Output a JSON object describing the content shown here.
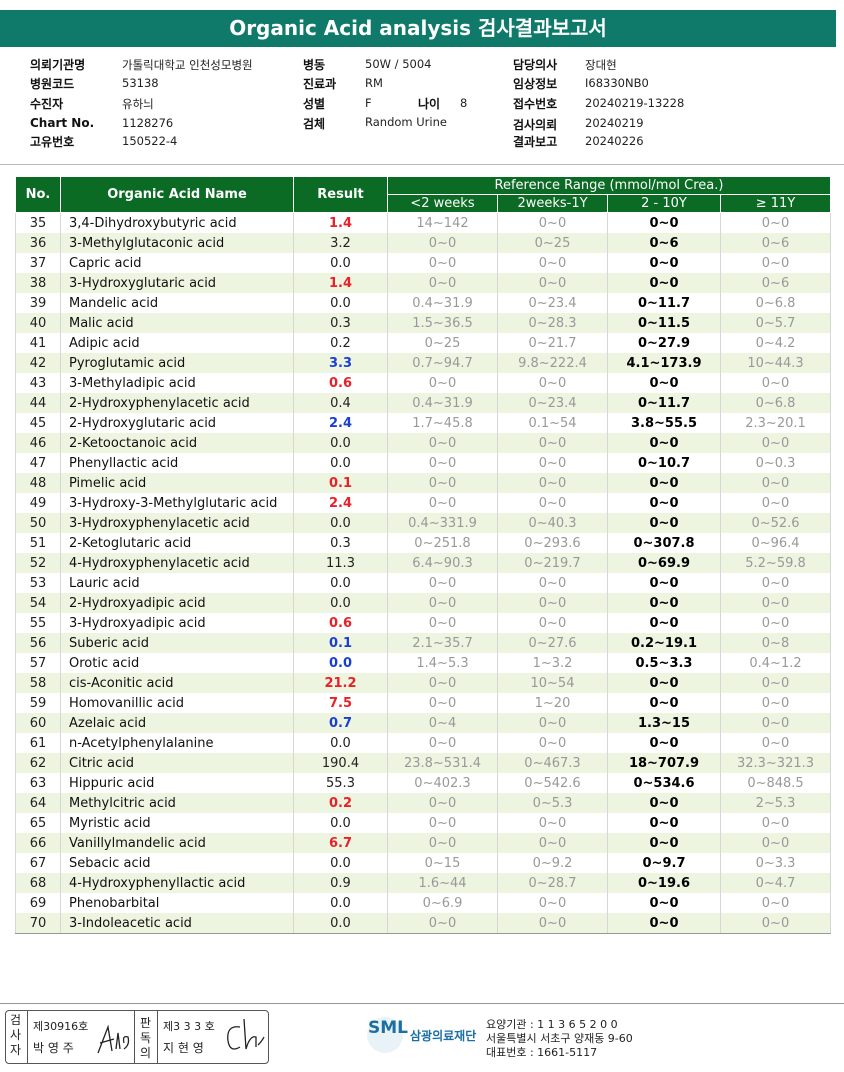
{
  "header": {
    "title": "Organic Acid analysis 검사결과보고서"
  },
  "info": {
    "hospital": {
      "label": "의뢰기관명",
      "value": "가톨릭대학교 인천성모병원"
    },
    "hospital_code": {
      "label": "병원코드",
      "value": "53138"
    },
    "patient": {
      "label": "수진자",
      "value": "유하늬"
    },
    "chart_no": {
      "label": "Chart No.",
      "value": "1128276"
    },
    "unique_no": {
      "label": "고유번호",
      "value": "150522-4"
    },
    "ward": {
      "label": "병동",
      "value": "50W / 5004"
    },
    "department": {
      "label": "진료과",
      "value": "RM"
    },
    "sex": {
      "label": "성별",
      "value": "F"
    },
    "age": {
      "label": "나이",
      "value": "8"
    },
    "specimen": {
      "label": "검체",
      "value": "Random Urine"
    },
    "doctor": {
      "label": "담당의사",
      "value": "장대현"
    },
    "clinical_info": {
      "label": "임상정보",
      "value": "I68330NB0"
    },
    "receipt_no": {
      "label": "접수번호",
      "value": "20240219-13228"
    },
    "request_date": {
      "label": "검사의뢰",
      "value": "20240219"
    },
    "report_date": {
      "label": "결과보고",
      "value": "20240226"
    }
  },
  "table": {
    "headers": {
      "no": "No.",
      "name": "Organic Acid Name",
      "result": "Result",
      "reference": "Reference Range (mmol/mol Crea.)",
      "ranges": [
        "<2 weeks",
        "2weeks-1Y",
        "2 - 10Y",
        "≥ 11Y"
      ]
    },
    "rows": [
      {
        "no": 35,
        "name": "3,4-Dihydroxybutyric acid",
        "result": "1.4",
        "color": "#e8202a",
        "ranges": [
          "14~142",
          "0~0",
          "0~0",
          "0~0"
        ]
      },
      {
        "no": 36,
        "name": "3-Methylglutaconic acid",
        "result": "3.2",
        "color": "#222222",
        "ranges": [
          "0~0",
          "0~25",
          "0~6",
          "0~6"
        ]
      },
      {
        "no": 37,
        "name": "Capric acid",
        "result": "0.0",
        "color": "#222222",
        "ranges": [
          "0~0",
          "0~0",
          "0~0",
          "0~0"
        ]
      },
      {
        "no": 38,
        "name": "3-Hydroxyglutaric acid",
        "result": "1.4",
        "color": "#e8202a",
        "ranges": [
          "0~0",
          "0~0",
          "0~0",
          "0~6"
        ]
      },
      {
        "no": 39,
        "name": "Mandelic acid",
        "result": "0.0",
        "color": "#222222",
        "ranges": [
          "0.4~31.9",
          "0~23.4",
          "0~11.7",
          "0~6.8"
        ]
      },
      {
        "no": 40,
        "name": "Malic acid",
        "result": "0.3",
        "color": "#222222",
        "ranges": [
          "1.5~36.5",
          "0~28.3",
          "0~11.5",
          "0~5.7"
        ]
      },
      {
        "no": 41,
        "name": "Adipic acid",
        "result": "0.2",
        "color": "#222222",
        "ranges": [
          "0~25",
          "0~21.7",
          "0~27.9",
          "0~4.2"
        ]
      },
      {
        "no": 42,
        "name": "Pyroglutamic acid",
        "result": "3.3",
        "color": "#1a3fd0",
        "ranges": [
          "0.7~94.7",
          "9.8~222.4",
          "4.1~173.9",
          "10~44.3"
        ]
      },
      {
        "no": 43,
        "name": "3-Methyladipic acid",
        "result": "0.6",
        "color": "#e8202a",
        "ranges": [
          "0~0",
          "0~0",
          "0~0",
          "0~0"
        ]
      },
      {
        "no": 44,
        "name": "2-Hydroxyphenylacetic acid",
        "result": "0.4",
        "color": "#222222",
        "ranges": [
          "0.4~31.9",
          "0~23.4",
          "0~11.7",
          "0~6.8"
        ]
      },
      {
        "no": 45,
        "name": "2-Hydroxyglutaric acid",
        "result": "2.4",
        "color": "#1a3fd0",
        "ranges": [
          "1.7~45.8",
          "0.1~54",
          "3.8~55.5",
          "2.3~20.1"
        ]
      },
      {
        "no": 46,
        "name": "2-Ketooctanoic acid",
        "result": "0.0",
        "color": "#222222",
        "ranges": [
          "0~0",
          "0~0",
          "0~0",
          "0~0"
        ]
      },
      {
        "no": 47,
        "name": "Phenyllactic acid",
        "result": "0.0",
        "color": "#222222",
        "ranges": [
          "0~0",
          "0~0",
          "0~10.7",
          "0~0.3"
        ]
      },
      {
        "no": 48,
        "name": "Pimelic acid",
        "result": "0.1",
        "color": "#e8202a",
        "ranges": [
          "0~0",
          "0~0",
          "0~0",
          "0~0"
        ]
      },
      {
        "no": 49,
        "name": "3-Hydroxy-3-Methylglutaric acid",
        "result": "2.4",
        "color": "#e8202a",
        "ranges": [
          "0~0",
          "0~0",
          "0~0",
          "0~0"
        ]
      },
      {
        "no": 50,
        "name": "3-Hydroxyphenylacetic acid",
        "result": "0.0",
        "color": "#222222",
        "ranges": [
          "0.4~331.9",
          "0~40.3",
          "0~0",
          "0~52.6"
        ]
      },
      {
        "no": 51,
        "name": "2-Ketoglutaric acid",
        "result": "0.3",
        "color": "#222222",
        "ranges": [
          "0~251.8",
          "0~293.6",
          "0~307.8",
          "0~96.4"
        ]
      },
      {
        "no": 52,
        "name": "4-Hydroxyphenylacetic acid",
        "result": "11.3",
        "color": "#222222",
        "ranges": [
          "6.4~90.3",
          "0~219.7",
          "0~69.9",
          "5.2~59.8"
        ]
      },
      {
        "no": 53,
        "name": "Lauric acid",
        "result": "0.0",
        "color": "#222222",
        "ranges": [
          "0~0",
          "0~0",
          "0~0",
          "0~0"
        ]
      },
      {
        "no": 54,
        "name": "2-Hydroxyadipic acid",
        "result": "0.0",
        "color": "#222222",
        "ranges": [
          "0~0",
          "0~0",
          "0~0",
          "0~0"
        ]
      },
      {
        "no": 55,
        "name": "3-Hydroxyadipic acid",
        "result": "0.6",
        "color": "#e8202a",
        "ranges": [
          "0~0",
          "0~0",
          "0~0",
          "0~0"
        ]
      },
      {
        "no": 56,
        "name": "Suberic acid",
        "result": "0.1",
        "color": "#1a3fd0",
        "ranges": [
          "2.1~35.7",
          "0~27.6",
          "0.2~19.1",
          "0~8"
        ]
      },
      {
        "no": 57,
        "name": "Orotic acid",
        "result": "0.0",
        "color": "#1a3fd0",
        "ranges": [
          "1.4~5.3",
          "1~3.2",
          "0.5~3.3",
          "0.4~1.2"
        ]
      },
      {
        "no": 58,
        "name": "cis-Aconitic acid",
        "result": "21.2",
        "color": "#e8202a",
        "ranges": [
          "0~0",
          "10~54",
          "0~0",
          "0~0"
        ]
      },
      {
        "no": 59,
        "name": "Homovanillic acid",
        "result": "7.5",
        "color": "#e8202a",
        "ranges": [
          "0~0",
          "1~20",
          "0~0",
          "0~0"
        ]
      },
      {
        "no": 60,
        "name": "Azelaic acid",
        "result": "0.7",
        "color": "#1a3fd0",
        "ranges": [
          "0~4",
          "0~0",
          "1.3~15",
          "0~0"
        ]
      },
      {
        "no": 61,
        "name": "n-Acetylphenylalanine",
        "result": "0.0",
        "color": "#222222",
        "ranges": [
          "0~0",
          "0~0",
          "0~0",
          "0~0"
        ]
      },
      {
        "no": 62,
        "name": "Citric acid",
        "result": "190.4",
        "color": "#222222",
        "ranges": [
          "23.8~531.4",
          "0~467.3",
          "18~707.9",
          "32.3~321.3"
        ]
      },
      {
        "no": 63,
        "name": "Hippuric acid",
        "result": "55.3",
        "color": "#222222",
        "ranges": [
          "0~402.3",
          "0~542.6",
          "0~534.6",
          "0~848.5"
        ]
      },
      {
        "no": 64,
        "name": "Methylcitric acid",
        "result": "0.2",
        "color": "#e8202a",
        "ranges": [
          "0~0",
          "0~5.3",
          "0~0",
          "2~5.3"
        ]
      },
      {
        "no": 65,
        "name": "Myristic acid",
        "result": "0.0",
        "color": "#222222",
        "ranges": [
          "0~0",
          "0~0",
          "0~0",
          "0~0"
        ]
      },
      {
        "no": 66,
        "name": "Vanillylmandelic acid",
        "result": "6.7",
        "color": "#e8202a",
        "ranges": [
          "0~0",
          "0~0",
          "0~0",
          "0~0"
        ]
      },
      {
        "no": 67,
        "name": "Sebacic acid",
        "result": "0.0",
        "color": "#222222",
        "ranges": [
          "0~15",
          "0~9.2",
          "0~9.7",
          "0~3.3"
        ]
      },
      {
        "no": 68,
        "name": "4-Hydroxyphenyllactic acid",
        "result": "0.9",
        "color": "#222222",
        "ranges": [
          "1.6~44",
          "0~28.7",
          "0~19.6",
          "0~4.7"
        ]
      },
      {
        "no": 69,
        "name": "Phenobarbital",
        "result": "0.0",
        "color": "#222222",
        "ranges": [
          "0~6.9",
          "0~0",
          "0~0",
          "0~0"
        ]
      },
      {
        "no": 70,
        "name": "3-Indoleacetic acid",
        "result": "0.0",
        "color": "#222222",
        "ranges": [
          "0~0",
          "0~0",
          "0~0",
          "0~0"
        ]
      }
    ]
  },
  "footer": {
    "tester": {
      "label": "검사자",
      "number": "제30916호",
      "name": "박 영 주"
    },
    "reader": {
      "label": "판독의",
      "number": "제3 3 3 호",
      "name": "지 현 영"
    },
    "logo": "SML",
    "org": "삼광의료재단",
    "address": [
      "요양기관 : 1 1 3 6 5 2 0 0",
      "서울특별시 서초구 양재동 9-60",
      "대표번호 : 1661-5117"
    ]
  }
}
